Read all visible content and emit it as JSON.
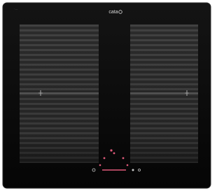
{
  "brand": {
    "logo": "cata"
  }
}
